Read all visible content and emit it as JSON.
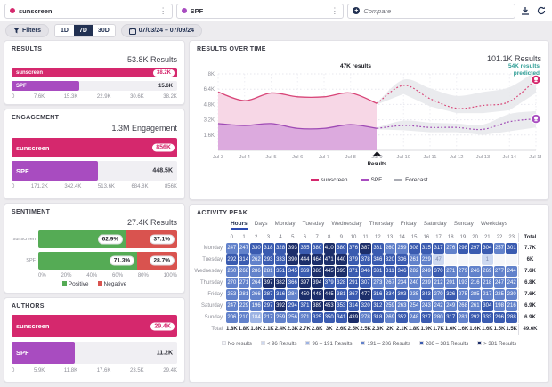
{
  "colors": {
    "pink": "#d5286d",
    "purple": "#a84cc0",
    "green": "#55ab55",
    "red": "#d9534f",
    "teal": "#2f9e96",
    "navy": "#223152",
    "grey_line": "#aaacb4"
  },
  "topbar": {
    "query1": {
      "label": "sunscreen",
      "dot_color": "#d5286d"
    },
    "query2": {
      "label": "SPF",
      "dot_color": "#a84cc0"
    },
    "compare_label": "Compare"
  },
  "filterbar": {
    "filters_label": "Filters",
    "ranges": [
      "1D",
      "7D",
      "30D"
    ],
    "active_range": "7D",
    "date_range": "07/03/24 – 07/09/24"
  },
  "chart_data": [
    {
      "id": "results",
      "type": "bar",
      "title": "RESULTS",
      "total": "53.8K Results",
      "categories": [
        "sunscreen",
        "SPF"
      ],
      "values": [
        38200,
        15600
      ],
      "max": 38200,
      "value_labels": [
        "38.2K",
        "15.6K"
      ],
      "axis": [
        "0",
        "7.6K",
        "15.3K",
        "22.9K",
        "30.6K",
        "38.2K"
      ]
    },
    {
      "id": "engagement",
      "type": "bar",
      "title": "ENGAGEMENT",
      "total": "1.3M Engagement",
      "categories": [
        "sunscreen",
        "SPF"
      ],
      "values": [
        856000,
        448500
      ],
      "max": 856000,
      "value_labels": [
        "856K",
        "448.5K"
      ],
      "axis": [
        "0",
        "171.2K",
        "342.4K",
        "513.6K",
        "684.8K",
        "856K"
      ]
    },
    {
      "id": "sentiment",
      "type": "stacked-bar",
      "title": "SENTIMENT",
      "total": "27.4K Results",
      "categories": [
        "sunscreen",
        "SPF"
      ],
      "series": [
        {
          "name": "Positive",
          "values": [
            62.9,
            71.3
          ]
        },
        {
          "name": "Negative",
          "values": [
            37.1,
            28.7
          ]
        }
      ],
      "value_labels": [
        [
          "62.9%",
          "37.1%"
        ],
        [
          "71.3%",
          "28.7%"
        ]
      ],
      "axis": [
        "0%",
        "20%",
        "40%",
        "60%",
        "80%",
        "100%"
      ],
      "legend": [
        "Positive",
        "Negative"
      ]
    },
    {
      "id": "authors",
      "type": "bar",
      "title": "AUTHORS",
      "total": "",
      "categories": [
        "sunscreen",
        "SPF"
      ],
      "values": [
        29400,
        11200
      ],
      "max": 29400,
      "value_labels": [
        "29.4K",
        "11.2K"
      ],
      "axis": [
        "0",
        "5.9K",
        "11.8K",
        "17.6K",
        "23.5K",
        "29.4K"
      ]
    },
    {
      "id": "results_over_time",
      "type": "area-line",
      "title": "RESULTS OVER TIME",
      "total": "101.1K Results",
      "annotations": {
        "current": "47K results",
        "predicted": "54K results predicted",
        "marker": "Results"
      },
      "x": [
        "Jul 3",
        "Jul 4",
        "Jul 5",
        "Jul 6",
        "Jul 7",
        "Jul 8",
        "Jul 9",
        "Jul 10",
        "Jul 11",
        "Jul 12",
        "Jul 13",
        "Jul 14",
        "Jul 15"
      ],
      "ylim": [
        0,
        8
      ],
      "y_ticks": [
        {
          "v": 1.6,
          "label": "1.6K"
        },
        {
          "v": 3.2,
          "label": "3.2K"
        },
        {
          "v": 4.8,
          "label": "4.8K"
        },
        {
          "v": 6.4,
          "label": "6.4K"
        },
        {
          "v": 8,
          "label": "8K"
        }
      ],
      "forecast_start_index": 6,
      "series": [
        {
          "name": "sunscreen",
          "actual": [
            6.1,
            5.2,
            6.0,
            5.6,
            5.6,
            6.0,
            4.9
          ],
          "forecast": [
            4.9,
            6.8,
            5.4,
            4.4,
            4.7,
            5.1,
            7.4
          ],
          "band_hi": [
            5.0,
            7.4,
            6.5,
            5.7,
            6.1,
            6.6,
            8.3
          ],
          "band_lo": [
            4.8,
            5.9,
            4.6,
            3.9,
            3.9,
            4.2,
            6.0
          ]
        },
        {
          "name": "SPF",
          "actual": [
            2.8,
            2.6,
            2.8,
            2.3,
            2.3,
            2.7,
            2.3
          ],
          "forecast": [
            2.3,
            2.6,
            2.4,
            2.4,
            2.2,
            3.0,
            3.3
          ],
          "band_hi": [
            2.4,
            3.1,
            2.9,
            2.8,
            2.7,
            3.8,
            4.1
          ],
          "band_lo": [
            2.2,
            2.1,
            1.9,
            1.9,
            1.6,
            2.0,
            2.4
          ]
        }
      ],
      "legend": [
        "sunscreen",
        "SPF",
        "Forecast"
      ]
    },
    {
      "id": "activity_peak",
      "type": "heatmap",
      "title": "ACTIVITY PEAK",
      "tabs": [
        "Hours",
        "Days",
        "Monday",
        "Tuesday",
        "Wednesday",
        "Thursday",
        "Friday",
        "Saturday",
        "Sunday",
        "Weekdays"
      ],
      "active_tab": "Hours",
      "hours": [
        "0",
        "1",
        "2",
        "3",
        "4",
        "5",
        "6",
        "7",
        "8",
        "9",
        "10",
        "11",
        "12",
        "13",
        "14",
        "15",
        "16",
        "17",
        "18",
        "19",
        "20",
        "21",
        "22",
        "23"
      ],
      "total_label": "Total",
      "rows": [
        {
          "day": "Monday",
          "values": [
            247,
            247,
            330,
            318,
            328,
            393,
            355,
            380,
            410,
            380,
            376,
            387,
            361,
            260,
            259,
            308,
            315,
            317,
            276,
            298,
            297,
            304,
            257,
            301
          ],
          "total": "7.7K"
        },
        {
          "day": "Tuesday",
          "values": [
            292,
            314,
            262,
            293,
            333,
            390,
            444,
            464,
            471,
            440,
            379,
            378,
            346,
            320,
            336,
            261,
            229,
            47,
            null,
            null,
            null,
            1,
            null,
            null
          ],
          "total": "6K"
        },
        {
          "day": "Wednesday",
          "values": [
            260,
            268,
            286,
            281,
            351,
            345,
            369,
            383,
            445,
            395,
            371,
            346,
            331,
            311,
            346,
            282,
            249,
            370,
            271,
            279,
            246,
            269,
            277,
            244
          ],
          "total": "7.6K"
        },
        {
          "day": "Thursday",
          "values": [
            270,
            271,
            264,
            397,
            382,
            366,
            397,
            394,
            379,
            328,
            291,
            307,
            273,
            267,
            234,
            240,
            239,
            212,
            201,
            193,
            216,
            218,
            247,
            242
          ],
          "total": "6.8K"
        },
        {
          "day": "Friday",
          "values": [
            253,
            281,
            266,
            287,
            316,
            284,
            450,
            448,
            445,
            381,
            367,
            477,
            316,
            334,
            303,
            235,
            343,
            270,
            326,
            275,
            285,
            217,
            225,
            230
          ],
          "total": "7.6K"
        },
        {
          "day": "Saturday",
          "values": [
            247,
            229,
            196,
            297,
            392,
            294,
            371,
            389,
            453,
            353,
            314,
            320,
            312,
            259,
            263,
            254,
            243,
            242,
            249,
            268,
            261,
            304,
            198,
            216
          ],
          "total": "6.9K"
        },
        {
          "day": "Sunday",
          "values": [
            206,
            210,
            184,
            217,
            259,
            256,
            271,
            325,
            350,
            341,
            439,
            278,
            318,
            269,
            352,
            248,
            327,
            280,
            317,
            281,
            292,
            333,
            296,
            288
          ],
          "total": "6.9K"
        }
      ],
      "totals": {
        "label": "Total",
        "values": [
          "1.8K",
          "1.8K",
          "1.8K",
          "2.1K",
          "2.4K",
          "2.3K",
          "2.7K",
          "2.8K",
          "3K",
          "2.6K",
          "2.5K",
          "2.5K",
          "2.3K",
          "2K",
          "2.1K",
          "1.8K",
          "1.9K",
          "1.7K",
          "1.6K",
          "1.6K",
          "1.6K",
          "1.6K",
          "1.5K",
          "1.5K"
        ],
        "grand": "49.6K"
      },
      "bucket_thresholds": [
        96,
        191,
        286,
        381
      ],
      "buckets": [
        {
          "label": "No results",
          "color": "#f6f7fa"
        },
        {
          "label": "< 96 Results",
          "color": "#ccd8f0"
        },
        {
          "label": "96 – 191 Results",
          "color": "#9db4e4"
        },
        {
          "label": "191 – 286 Results",
          "color": "#6282cb"
        },
        {
          "label": "286 – 381 Results",
          "color": "#3a5bb0"
        },
        {
          "label": "> 381 Results",
          "color": "#1c2e6a"
        }
      ]
    }
  ]
}
